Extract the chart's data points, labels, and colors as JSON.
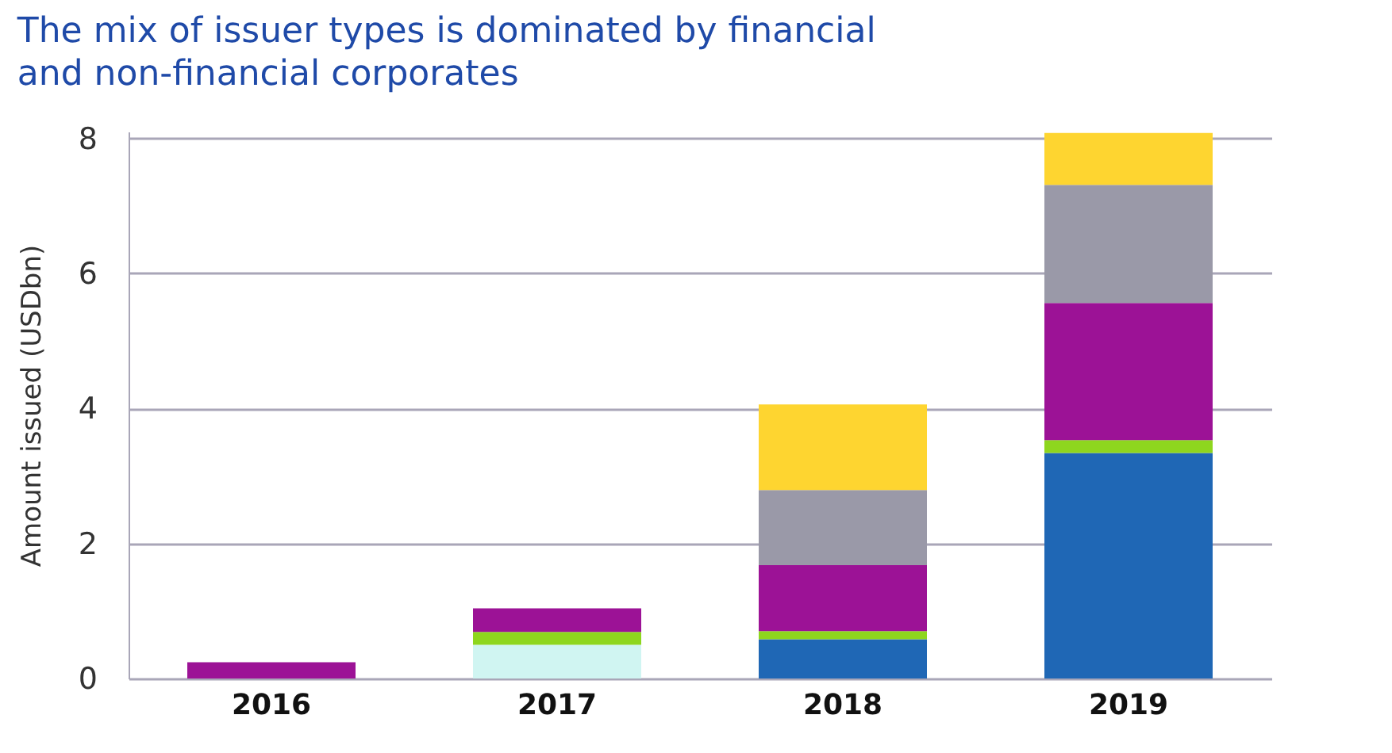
{
  "chart_data": {
    "type": "bar",
    "title": "The mix of issuer types is dominated by financial and non-financial corporates",
    "ylabel": "Amount issued (USDbn)",
    "categories": [
      "2016",
      "2017",
      "2018",
      "2019"
    ],
    "stacked": true,
    "series": [
      {
        "color": "#d0f5f2",
        "values": [
          null,
          0.5,
          null,
          null
        ]
      },
      {
        "color": "#1f67b5",
        "values": [
          null,
          null,
          0.58,
          3.34
        ]
      },
      {
        "color": "#8ed61e",
        "values": [
          null,
          0.19,
          0.12,
          0.19
        ]
      },
      {
        "color": "#9c1296",
        "values": [
          0.24,
          0.35,
          0.98,
          2.03
        ]
      },
      {
        "color": "#9a99a8",
        "values": [
          null,
          null,
          1.11,
          1.75
        ]
      },
      {
        "color": "#fed530",
        "values": [
          null,
          null,
          1.27,
          0.77
        ]
      }
    ],
    "ylim": [
      0,
      8.1
    ],
    "yticks": [
      0,
      2,
      4,
      6,
      8
    ],
    "grid": "y"
  }
}
